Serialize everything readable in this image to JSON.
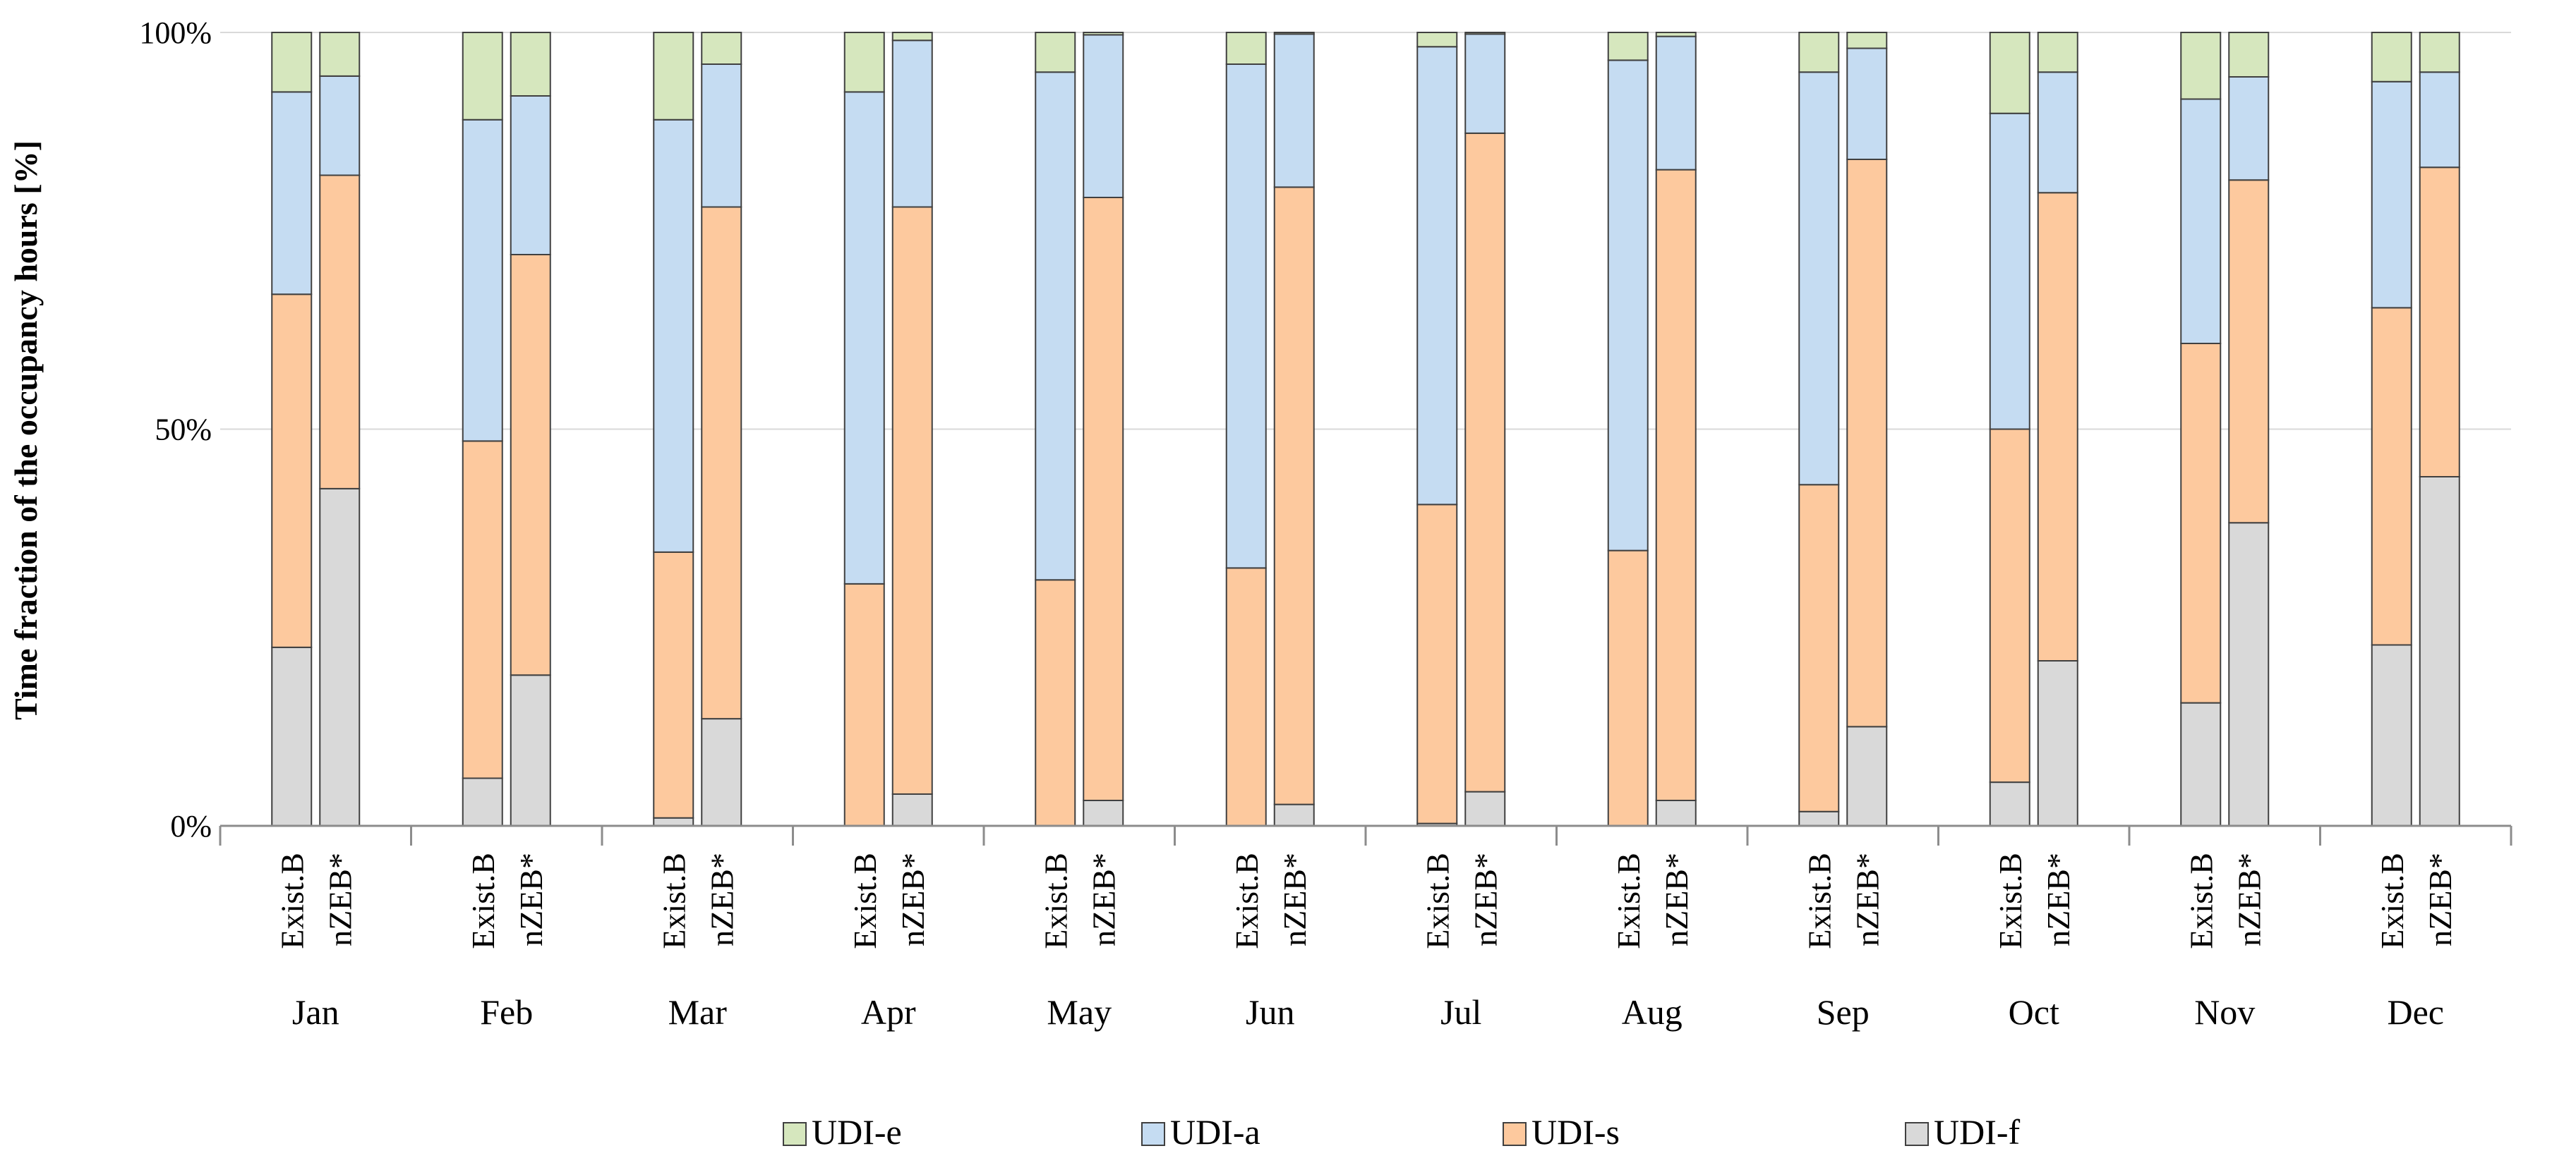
{
  "chart_data": {
    "type": "bar",
    "stacked": true,
    "ylabel": "Time fraction of the occupancy hours [%]",
    "xlabel": "",
    "ylim": [
      0,
      100
    ],
    "y_ticks": [
      "0%",
      "50%",
      "100%"
    ],
    "grid": true,
    "legend_position": "bottom",
    "months": [
      "Jan",
      "Feb",
      "Mar",
      "Apr",
      "May",
      "Jun",
      "Jul",
      "Aug",
      "Sep",
      "Oct",
      "Nov",
      "Dec"
    ],
    "cases": [
      "Exist.B",
      "nZEB*"
    ],
    "series": [
      {
        "name": "UDI-f",
        "color": "#d9d9d9",
        "values": [
          [
            22.5,
            42.5
          ],
          [
            6,
            19
          ],
          [
            1,
            13.5
          ],
          [
            0,
            4
          ],
          [
            0,
            3.2
          ],
          [
            0,
            2.7
          ],
          [
            0.3,
            4.3
          ],
          [
            0,
            3.2
          ],
          [
            1.8,
            12.5
          ],
          [
            5.5,
            20.8
          ],
          [
            15.5,
            38.2
          ],
          [
            22.8,
            44
          ]
        ]
      },
      {
        "name": "UDI-s",
        "color": "#fdc99e",
        "values": [
          [
            44.5,
            39.5
          ],
          [
            42.5,
            53
          ],
          [
            33.5,
            64.5
          ],
          [
            30.5,
            74
          ],
          [
            31,
            76
          ],
          [
            32.5,
            77.8
          ],
          [
            40.2,
            83
          ],
          [
            34.7,
            79.5
          ],
          [
            41.2,
            71.5
          ],
          [
            44.5,
            59
          ],
          [
            45.3,
            43.2
          ],
          [
            42.5,
            39
          ]
        ]
      },
      {
        "name": "UDI-a",
        "color": "#c5dcf2",
        "values": [
          [
            25.5,
            12.5
          ],
          [
            40.5,
            20
          ],
          [
            54.5,
            18
          ],
          [
            62,
            21
          ],
          [
            64,
            20.5
          ],
          [
            63.5,
            19.3
          ],
          [
            57.7,
            12.5
          ],
          [
            61.8,
            16.8
          ],
          [
            52,
            14
          ],
          [
            39.8,
            15.2
          ],
          [
            30.8,
            13
          ],
          [
            28.5,
            12
          ]
        ]
      },
      {
        "name": "UDI-e",
        "color": "#d6e7be",
        "values": [
          [
            7.5,
            5.5
          ],
          [
            11,
            8
          ],
          [
            11,
            4
          ],
          [
            7.5,
            1
          ],
          [
            5,
            0.3
          ],
          [
            4,
            0.2
          ],
          [
            1.8,
            0.2
          ],
          [
            3.5,
            0.5
          ],
          [
            5,
            2
          ],
          [
            10.2,
            5
          ],
          [
            8.4,
            5.6
          ],
          [
            6.2,
            5
          ]
        ]
      }
    ]
  }
}
